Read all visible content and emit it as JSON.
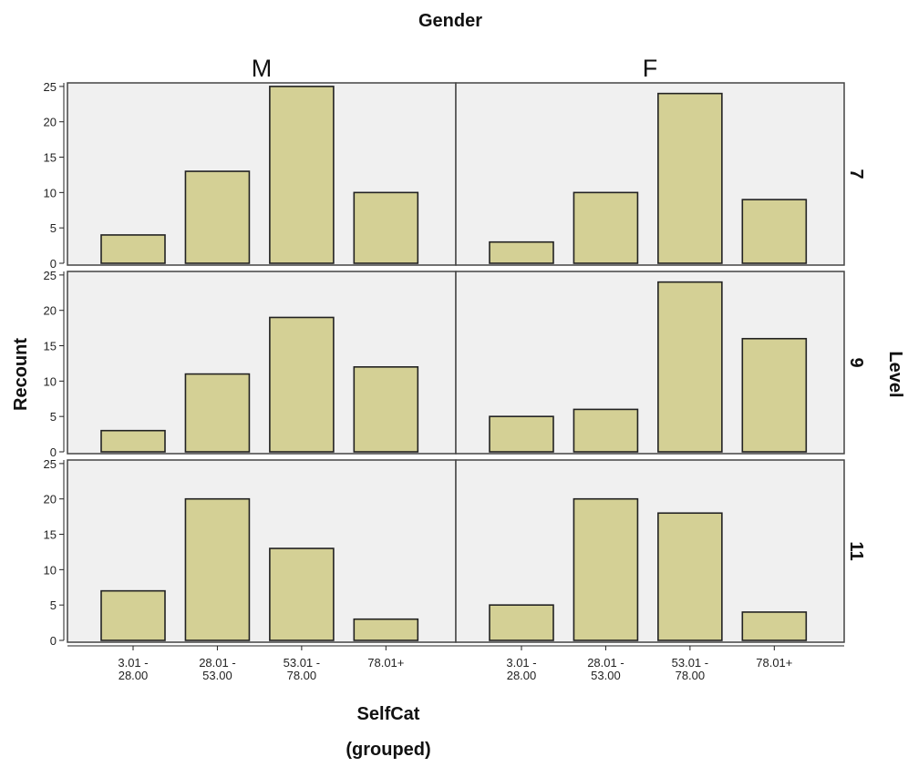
{
  "chart_data": {
    "type": "bar",
    "title": "Gender",
    "column_facet": {
      "title": "Gender",
      "levels": [
        "M",
        "F"
      ]
    },
    "row_facet": {
      "title": "Level",
      "levels": [
        "7",
        "9",
        "11"
      ]
    },
    "xlabel_line1": "SelfCat",
    "xlabel_line2": "(grouped)",
    "ylabel": "Recount",
    "categories": [
      [
        "3.01 -",
        "28.00"
      ],
      [
        "28.01 -",
        "53.00"
      ],
      [
        "53.01 -",
        "78.00"
      ],
      [
        "78.01+"
      ]
    ],
    "yticks": [
      0,
      5,
      10,
      15,
      20,
      25
    ],
    "ylim": [
      0,
      25.5
    ],
    "grid": false,
    "panels": [
      {
        "gender": "M",
        "level": "7",
        "values": [
          4,
          13,
          25,
          10
        ]
      },
      {
        "gender": "F",
        "level": "7",
        "values": [
          3,
          10,
          24,
          9
        ]
      },
      {
        "gender": "M",
        "level": "9",
        "values": [
          3,
          11,
          19,
          12
        ]
      },
      {
        "gender": "F",
        "level": "9",
        "values": [
          5,
          6,
          24,
          16
        ]
      },
      {
        "gender": "M",
        "level": "11",
        "values": [
          7,
          20,
          13,
          3
        ]
      },
      {
        "gender": "F",
        "level": "11",
        "values": [
          5,
          20,
          18,
          4
        ]
      }
    ],
    "colors": {
      "bar_fill": "#d4d095",
      "bar_stroke": "#222222",
      "panel_bg": "#f0f0f0",
      "panel_stroke": "#444444"
    }
  }
}
